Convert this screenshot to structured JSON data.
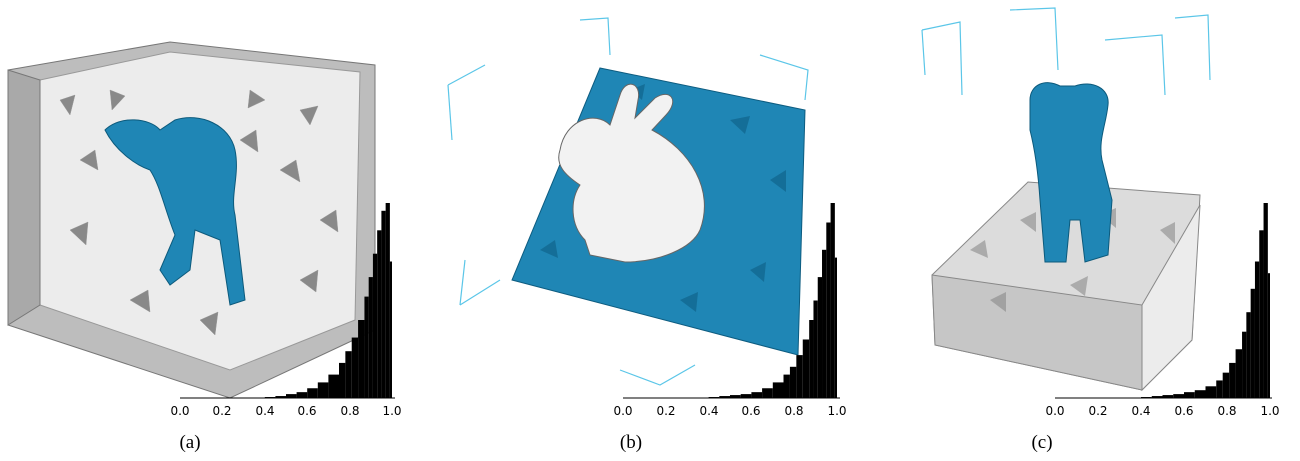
{
  "colors": {
    "accent": "#1f86b5",
    "mesh": "#d9d9d9",
    "box": "#5bc6e8",
    "bar": "#000000"
  },
  "figure": {
    "panels": [
      {
        "caption": "(a)",
        "object": "armadillo"
      },
      {
        "caption": "(b)",
        "object": "bunny"
      },
      {
        "caption": "(c)",
        "object": "torso"
      }
    ]
  },
  "chart_data": [
    {
      "type": "bar",
      "title": "",
      "xlabel": "",
      "ylabel": "",
      "xlim": [
        0.0,
        1.0
      ],
      "xticks": [
        "0.0",
        "0.2",
        "0.4",
        "0.6",
        "0.8",
        "1.0"
      ],
      "x": [
        0.4,
        0.45,
        0.5,
        0.55,
        0.6,
        0.65,
        0.7,
        0.75,
        0.78,
        0.81,
        0.84,
        0.87,
        0.89,
        0.91,
        0.93,
        0.95,
        0.97,
        0.99
      ],
      "values": [
        0.5,
        1,
        2,
        3,
        5,
        8,
        12,
        18,
        24,
        31,
        40,
        52,
        62,
        74,
        86,
        96,
        100,
        70
      ]
    },
    {
      "type": "bar",
      "title": "",
      "xlabel": "",
      "ylabel": "",
      "xlim": [
        0.0,
        1.0
      ],
      "xticks": [
        "0.0",
        "0.2",
        "0.4",
        "0.6",
        "0.8",
        "1.0"
      ],
      "x": [
        0.4,
        0.45,
        0.5,
        0.55,
        0.6,
        0.65,
        0.7,
        0.75,
        0.78,
        0.81,
        0.84,
        0.87,
        0.89,
        0.91,
        0.93,
        0.95,
        0.97,
        0.99
      ],
      "values": [
        0.5,
        1,
        1.5,
        2,
        3,
        5,
        8,
        12,
        16,
        22,
        30,
        40,
        50,
        62,
        76,
        90,
        100,
        72
      ]
    },
    {
      "type": "bar",
      "title": "",
      "xlabel": "",
      "ylabel": "",
      "xlim": [
        0.0,
        1.0
      ],
      "xticks": [
        "0.0",
        "0.2",
        "0.4",
        "0.6",
        "0.8",
        "1.0"
      ],
      "x": [
        0.4,
        0.45,
        0.5,
        0.55,
        0.6,
        0.65,
        0.7,
        0.75,
        0.78,
        0.81,
        0.84,
        0.87,
        0.89,
        0.91,
        0.93,
        0.95,
        0.97,
        0.99
      ],
      "values": [
        0.5,
        1,
        1.5,
        2,
        3,
        4,
        6,
        9,
        13,
        18,
        25,
        34,
        44,
        56,
        70,
        86,
        100,
        64
      ]
    }
  ]
}
